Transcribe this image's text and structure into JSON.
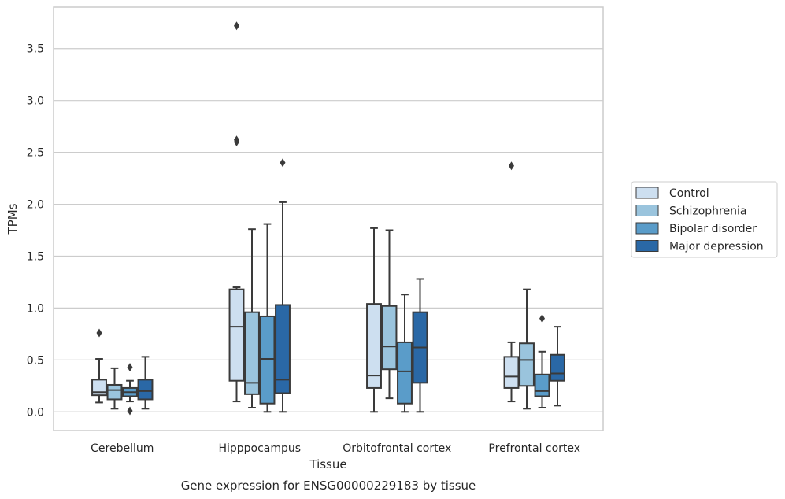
{
  "chart_data": {
    "type": "boxplot",
    "caption": "Gene expression for ENSG00000229183 by tissue",
    "xlabel": "Tissue",
    "ylabel": "TPMs",
    "ylim": [
      -0.18,
      3.9
    ],
    "yticks": [
      0.0,
      0.5,
      1.0,
      1.5,
      2.0,
      2.5,
      3.0,
      3.5
    ],
    "ytick_labels": [
      "0.0",
      "0.5",
      "1.0",
      "1.5",
      "2.0",
      "2.5",
      "3.0",
      "3.5"
    ],
    "categories": [
      "Cerebellum",
      "Hipppocampus",
      "Orbitofrontal cortex",
      "Prefrontal cortex"
    ],
    "grid": "horizontal",
    "legend_position": "right",
    "series": [
      {
        "name": "Control",
        "color": "#cddff0",
        "boxes": [
          {
            "whislo": 0.09,
            "q1": 0.16,
            "med": 0.19,
            "q3": 0.31,
            "whishi": 0.51,
            "fliers": [
              0.76
            ]
          },
          {
            "whislo": 0.1,
            "q1": 0.3,
            "med": 0.82,
            "q3": 1.18,
            "whishi": 1.2,
            "fliers": [
              2.6,
              2.62,
              3.72
            ]
          },
          {
            "whislo": 0.0,
            "q1": 0.23,
            "med": 0.35,
            "q3": 1.04,
            "whishi": 1.77,
            "fliers": []
          },
          {
            "whislo": 0.1,
            "q1": 0.23,
            "med": 0.34,
            "q3": 0.53,
            "whishi": 0.67,
            "fliers": [
              2.37
            ]
          }
        ]
      },
      {
        "name": "Schizophrenia",
        "color": "#9ac4dd",
        "boxes": [
          {
            "whislo": 0.03,
            "q1": 0.12,
            "med": 0.21,
            "q3": 0.26,
            "whishi": 0.42,
            "fliers": []
          },
          {
            "whislo": 0.04,
            "q1": 0.17,
            "med": 0.28,
            "q3": 0.96,
            "whishi": 1.76,
            "fliers": []
          },
          {
            "whislo": 0.13,
            "q1": 0.41,
            "med": 0.63,
            "q3": 1.02,
            "whishi": 1.75,
            "fliers": []
          },
          {
            "whislo": 0.03,
            "q1": 0.25,
            "med": 0.5,
            "q3": 0.66,
            "whishi": 1.18,
            "fliers": []
          }
        ]
      },
      {
        "name": "Bipolar disorder",
        "color": "#5a9cc9",
        "boxes": [
          {
            "whislo": 0.1,
            "q1": 0.15,
            "med": 0.19,
            "q3": 0.23,
            "whishi": 0.3,
            "fliers": [
              0.01,
              0.43
            ]
          },
          {
            "whislo": 0.0,
            "q1": 0.08,
            "med": 0.51,
            "q3": 0.92,
            "whishi": 1.81,
            "fliers": []
          },
          {
            "whislo": 0.0,
            "q1": 0.08,
            "med": 0.39,
            "q3": 0.67,
            "whishi": 1.13,
            "fliers": []
          },
          {
            "whislo": 0.04,
            "q1": 0.15,
            "med": 0.2,
            "q3": 0.36,
            "whishi": 0.58,
            "fliers": [
              0.9
            ]
          }
        ]
      },
      {
        "name": "Major depression",
        "color": "#2a68a6",
        "boxes": [
          {
            "whislo": 0.03,
            "q1": 0.12,
            "med": 0.2,
            "q3": 0.31,
            "whishi": 0.53,
            "fliers": []
          },
          {
            "whislo": 0.0,
            "q1": 0.18,
            "med": 0.31,
            "q3": 1.03,
            "whishi": 2.02,
            "fliers": [
              2.4
            ]
          },
          {
            "whislo": 0.0,
            "q1": 0.28,
            "med": 0.62,
            "q3": 0.96,
            "whishi": 1.28,
            "fliers": []
          },
          {
            "whislo": 0.06,
            "q1": 0.3,
            "med": 0.37,
            "q3": 0.55,
            "whishi": 0.82,
            "fliers": []
          }
        ]
      }
    ]
  }
}
